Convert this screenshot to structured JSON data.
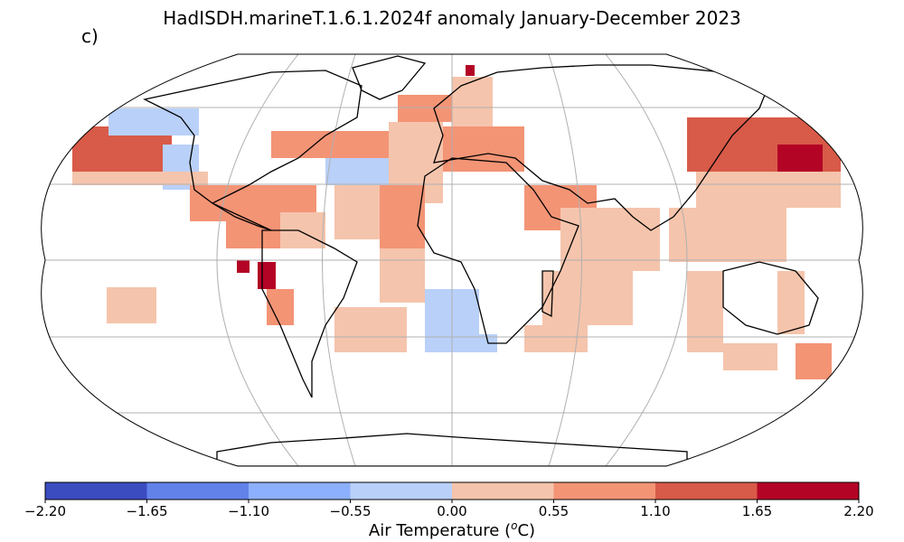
{
  "title": "HadISDH.marineT.1.6.1.2024f anomaly January-December 2023",
  "panel_label": "c)",
  "colorbar": {
    "label_main": "Air Temperature (",
    "label_sup": "o",
    "label_end": "C)",
    "ticks": [
      "−2.20",
      "−1.65",
      "−1.10",
      "−0.55",
      "0.00",
      "0.55",
      "1.10",
      "1.65",
      "2.20"
    ],
    "bounds": [
      -2.2,
      -1.65,
      -1.1,
      -0.55,
      0.0,
      0.55,
      1.1,
      1.65,
      2.2
    ],
    "colors": [
      "#3b4cc0",
      "#6282ea",
      "#8db0fe",
      "#b9d0f9",
      "#f5c4ac",
      "#f39475",
      "#d85a48",
      "#b40426"
    ]
  },
  "map": {
    "projection": "Robinson",
    "land_color": "#ffffff",
    "coastline_color": "#000000",
    "gridline_color": "#b0b0b0",
    "missing_color": "#ffffff"
  }
}
